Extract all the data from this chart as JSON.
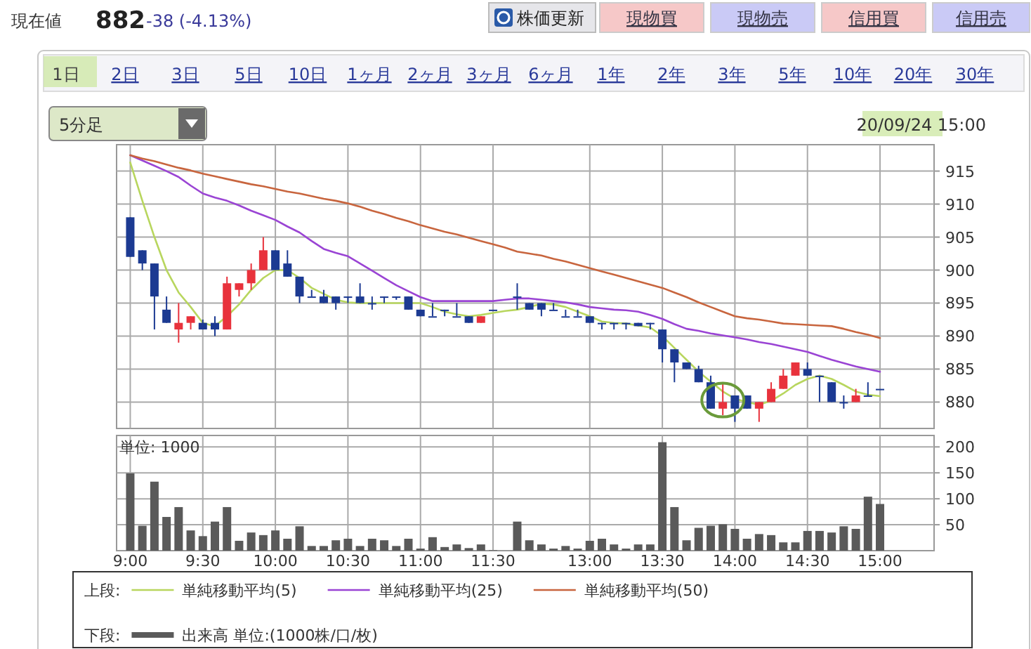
{
  "chart_data": [
    {
      "type": "candlestick",
      "legend_title": "上段:",
      "legend": "bottom",
      "grid": true,
      "tick_labels": "y",
      "annotations": [
        "現在値",
        "882",
        "-38 (-4.13%)",
        "株価更新",
        "現物買",
        "現物売",
        "信用買",
        "信用売",
        "1日",
        "2日",
        "3日",
        "5日",
        "10日",
        "1ヶ月",
        "2ヶ月",
        "3ヶ月",
        "6ヶ月",
        "1年",
        "2年",
        "3年",
        "5年",
        "10年",
        "20年",
        "30年",
        "5分足",
        "20/09/24 15:00"
      ],
      "categories": [
        null,
        null,
        null,
        null,
        null,
        null,
        null,
        null,
        null,
        null,
        null,
        null,
        null,
        null,
        null,
        null,
        null,
        null,
        null,
        null,
        null,
        null,
        null,
        null,
        null,
        null,
        null,
        null,
        null,
        null,
        null,
        null,
        null,
        null,
        null,
        null,
        null,
        null,
        null,
        null,
        null,
        null,
        null,
        null,
        null,
        null,
        null,
        null,
        null,
        null,
        null,
        null,
        null,
        null,
        null,
        null,
        null,
        null,
        null,
        null,
        null,
        null,
        null
      ],
      "ylim": [
        876,
        919
      ],
      "yticks": [
        880,
        885,
        890,
        895,
        900,
        905,
        910,
        915
      ],
      "ohlc": [
        [
          908,
          908,
          902,
          902
        ],
        [
          903,
          903,
          900,
          901
        ],
        [
          901,
          901,
          891,
          896
        ],
        [
          894,
          896,
          892,
          892
        ],
        [
          891,
          895,
          889,
          892
        ],
        [
          892,
          893,
          891,
          893
        ],
        [
          892,
          892.5,
          891,
          891
        ],
        [
          892,
          893,
          890,
          891
        ],
        [
          891,
          899,
          891,
          898
        ],
        [
          897,
          898,
          896,
          898
        ],
        [
          898,
          901,
          897,
          900
        ],
        [
          900,
          905,
          900,
          903
        ],
        [
          903,
          903,
          900,
          900
        ],
        [
          901,
          903,
          899,
          899
        ],
        [
          899,
          899,
          895,
          896
        ],
        [
          896,
          897,
          896,
          896
        ],
        [
          896,
          897,
          895,
          895
        ],
        [
          896,
          896,
          894,
          895
        ],
        [
          896,
          896,
          895,
          896
        ],
        [
          896,
          898,
          895,
          895
        ],
        [
          895,
          896,
          894,
          895
        ],
        [
          896,
          896,
          895,
          896
        ],
        [
          896,
          896,
          895.5,
          896
        ],
        [
          896,
          896,
          894,
          894
        ],
        [
          894,
          894,
          893,
          893
        ],
        [
          893,
          895,
          893,
          893
        ],
        [
          894,
          894,
          893,
          894
        ],
        [
          893,
          895,
          893,
          893
        ],
        [
          893,
          893,
          892,
          892
        ],
        [
          892,
          893,
          892,
          893
        ],
        [
          894,
          894,
          894,
          894
        ],
        null,
        [
          896,
          898,
          894,
          896
        ],
        [
          895,
          895,
          894,
          894
        ],
        [
          895,
          895,
          893,
          894
        ],
        [
          894,
          895,
          894,
          894
        ],
        [
          893,
          894,
          893,
          893
        ],
        [
          893,
          894,
          893,
          893
        ],
        [
          893,
          893,
          892,
          892
        ],
        [
          892,
          892,
          891,
          892
        ],
        [
          892,
          892,
          891,
          892
        ],
        [
          892,
          892,
          891,
          892
        ],
        [
          892,
          892,
          891.5,
          891.5
        ],
        [
          892,
          892,
          891,
          892
        ],
        [
          891,
          891,
          886,
          888
        ],
        [
          888,
          888,
          883,
          886
        ],
        [
          886,
          886,
          885,
          885
        ],
        [
          885,
          885.5,
          883,
          883
        ],
        [
          883,
          884,
          879,
          879
        ],
        [
          879,
          883,
          878,
          880
        ],
        [
          881,
          881,
          877,
          879
        ],
        [
          881,
          881,
          879,
          879
        ],
        [
          879,
          880,
          877,
          880
        ],
        [
          880,
          883,
          880,
          882
        ],
        [
          882,
          885,
          882,
          884
        ],
        [
          884,
          886,
          884,
          886
        ],
        [
          885,
          886,
          884,
          884
        ],
        [
          884,
          884,
          880,
          884
        ],
        [
          883,
          883,
          880,
          880
        ],
        [
          880,
          881,
          879,
          880
        ],
        [
          880,
          882,
          880,
          881
        ],
        [
          881,
          883,
          881,
          881
        ],
        [
          882,
          882,
          882,
          882
        ]
      ],
      "series": [
        {
          "type": "line",
          "name": "単純移動平均(5)",
          "color": "#b8d65e",
          "values": [
            916.3,
            910.5,
            905,
            900,
            896.6,
            894.4,
            892,
            891.5,
            893,
            894.8,
            897,
            898.8,
            900,
            900,
            898.8,
            897.3,
            896.4,
            895.5,
            895.1,
            895,
            895,
            895,
            895,
            895,
            895,
            894.4,
            893.7,
            893.3,
            893,
            893.2,
            893.5,
            893.8,
            894,
            894.4,
            894.9,
            894.8,
            894.4,
            893.7,
            893,
            892.2,
            892,
            891.9,
            891.6,
            891.3,
            890,
            888.2,
            886.4,
            884.6,
            883.1,
            881.6,
            880.5,
            880,
            879.6,
            880.2,
            881.3,
            882.6,
            883.5,
            884,
            883.5,
            882.6,
            881.6,
            881.1,
            880.9
          ]
        },
        {
          "type": "line",
          "name": "単純移動平均(25)",
          "color": "#9a44d4",
          "values": [
            917.4,
            916.6,
            915.8,
            915,
            914.1,
            912.8,
            911.6,
            911,
            910.5,
            909.8,
            909,
            908.3,
            907.6,
            906.6,
            905.7,
            904.4,
            903.2,
            902.6,
            902.1,
            901,
            899.9,
            898.8,
            897.7,
            896.8,
            895.9,
            895.3,
            895.3,
            895.3,
            895.3,
            895.3,
            895.3,
            895.5,
            895.7,
            895.7,
            895.5,
            895.3,
            895.1,
            894.8,
            894.4,
            894.2,
            894,
            893.9,
            893.7,
            893.2,
            892.6,
            891.8,
            891.1,
            890.8,
            890.4,
            890.1,
            889.8,
            889.5,
            889.1,
            888.8,
            888.4,
            888,
            887.6,
            887,
            886.4,
            885.9,
            885.4,
            885,
            884.6
          ]
        },
        {
          "type": "line",
          "name": "単純移動平均(50)",
          "color": "#c8653e",
          "values": [
            917.4,
            916.9,
            916.5,
            916,
            915.5,
            915.1,
            914.6,
            914.2,
            913.8,
            913.4,
            913,
            912.7,
            912.3,
            911.9,
            911.6,
            911.2,
            910.8,
            910.5,
            910.1,
            909.6,
            909,
            908.5,
            907.9,
            907.4,
            906.8,
            906.3,
            905.8,
            905.4,
            904.9,
            904.4,
            903.9,
            903.4,
            902.8,
            902.5,
            902.2,
            901.7,
            901.3,
            900.8,
            900.3,
            899.8,
            899.3,
            898.8,
            898.3,
            897.8,
            897.3,
            896.6,
            895.9,
            895.1,
            894.4,
            893.7,
            893,
            892.7,
            892.5,
            892.2,
            891.9,
            891.8,
            891.7,
            891.6,
            891.5,
            891.1,
            890.6,
            890.2,
            889.7
          ]
        }
      ]
    },
    {
      "type": "bar",
      "legend_title": "下段:",
      "legend": "bottom",
      "grid": true,
      "annotations": [
        "単位: 1000"
      ],
      "categories": [
        "9:00",
        null,
        null,
        null,
        null,
        null,
        "9:30",
        null,
        null,
        null,
        null,
        null,
        "10:00",
        null,
        null,
        null,
        null,
        null,
        "10:30",
        null,
        null,
        null,
        null,
        null,
        "11:00",
        null,
        null,
        null,
        null,
        null,
        "11:30",
        null,
        null,
        null,
        null,
        null,
        null,
        null,
        "13:00",
        null,
        null,
        null,
        null,
        null,
        "13:30",
        null,
        null,
        null,
        null,
        null,
        "14:00",
        null,
        null,
        null,
        null,
        null,
        "14:30",
        null,
        null,
        null,
        null,
        null,
        "15:00"
      ],
      "ylim": [
        0,
        222
      ],
      "yticks": [
        50,
        100,
        150,
        200
      ],
      "series": [
        {
          "name": "出来高 単位:(1000株/口/枚)",
          "color": "#5a5a5a",
          "values": [
            149,
            48,
            133,
            65,
            84,
            39,
            28,
            56,
            84,
            19,
            35,
            30,
            39,
            23,
            47,
            9,
            9,
            20,
            23,
            9,
            23,
            20,
            9,
            23,
            4,
            26,
            7,
            12,
            5,
            12,
            1,
            null,
            56,
            20,
            12,
            4,
            9,
            4,
            19,
            23,
            12,
            4,
            12,
            12,
            209,
            84,
            20,
            44,
            48,
            51,
            42,
            23,
            32,
            30,
            16,
            16,
            38,
            38,
            35,
            47,
            42,
            104,
            90
          ]
        }
      ]
    }
  ]
}
